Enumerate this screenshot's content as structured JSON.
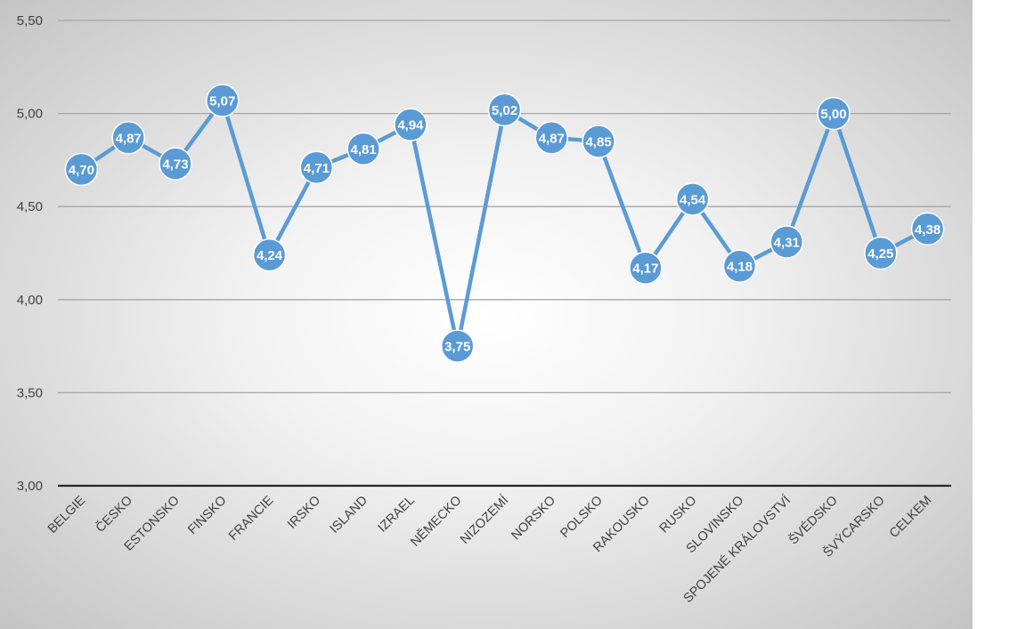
{
  "chart_data": {
    "type": "line",
    "categories": [
      "BELGIE",
      "ČESKO",
      "ESTONSKO",
      "FINSKO",
      "FRANCIE",
      "IRSKO",
      "ISLAND",
      "IZRAEL",
      "NĚMECKO",
      "NIZOZEMÍ",
      "NORSKO",
      "POLSKO",
      "RAKOUSKO",
      "RUSKO",
      "SLOVINSKO",
      "SPOJENÉ KRÁLOVSTVÍ",
      "ŠVÉDSKO",
      "ŠVÝCARSKO",
      "CELKEM"
    ],
    "series": [
      {
        "values": [
          4.7,
          4.87,
          4.73,
          5.07,
          4.24,
          4.71,
          4.81,
          4.94,
          3.75,
          5.02,
          4.87,
          4.85,
          4.17,
          4.54,
          4.18,
          4.31,
          5.0,
          4.25,
          4.38
        ],
        "data_labels": [
          "4,70",
          "4,87",
          "4,73",
          "5,07",
          "4,24",
          "4,71",
          "4,81",
          "4,94",
          "3,75",
          "5,02",
          "4,87",
          "4,85",
          "4,17",
          "4,54",
          "4,18",
          "4,31",
          "5,00",
          "4,25",
          "4,38"
        ]
      }
    ],
    "y_ticks": [
      3.0,
      3.5,
      4.0,
      4.5,
      5.0,
      5.5
    ],
    "y_tick_labels": [
      "3,00",
      "3,50",
      "4,00",
      "4,50",
      "5,00",
      "5,50"
    ],
    "ylim": [
      3.0,
      5.5
    ],
    "grid": true,
    "legend": "none",
    "colors": {
      "line": "#5b9bd5",
      "marker_fill": "#5b9bd5",
      "marker_edge": "#ffffff",
      "data_label": "#ffffff",
      "gridline": "#a6a6a6",
      "axis_line": "#262626",
      "tick_label": "#404040"
    }
  }
}
